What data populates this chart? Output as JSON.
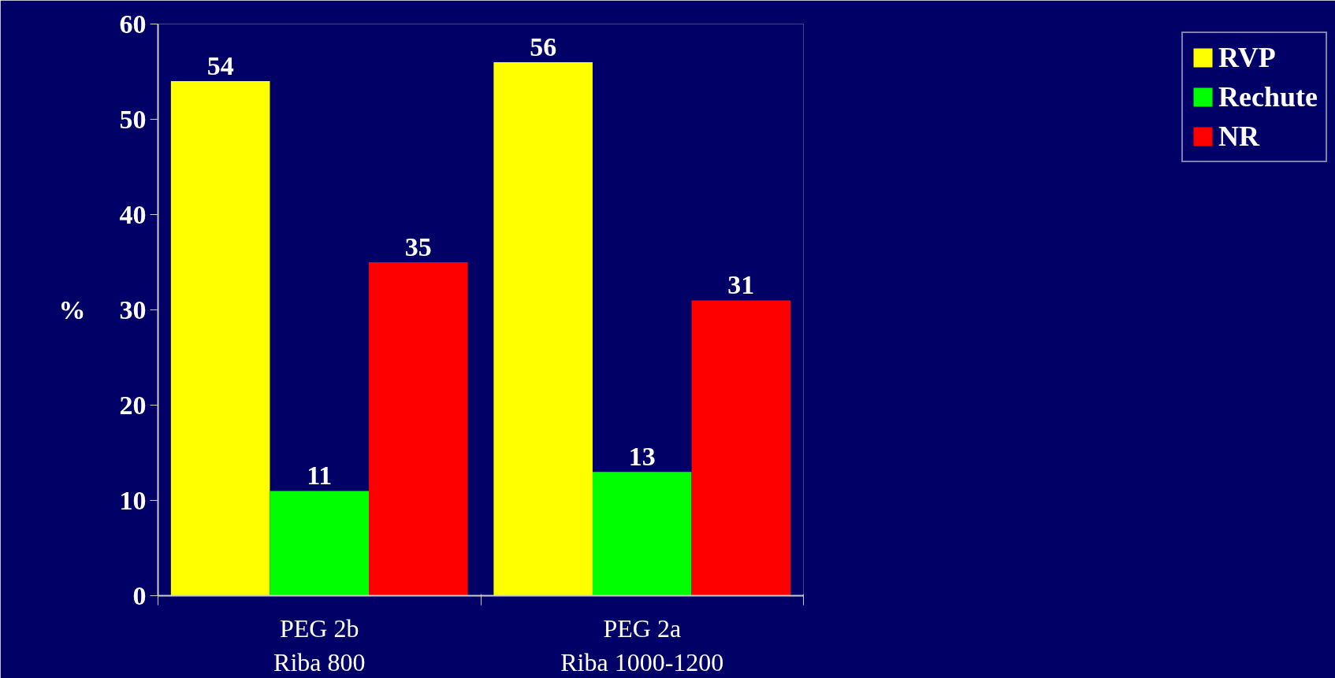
{
  "chart_data": {
    "type": "bar",
    "ylabel": "%",
    "categories": [
      "PEG 2b\nRiba 800",
      "PEG 2a\nRiba 1000-1200"
    ],
    "series": [
      {
        "name": "RVP",
        "color": "#ffff00",
        "values": [
          54,
          56
        ]
      },
      {
        "name": "Rechute",
        "color": "#00ff00",
        "values": [
          11,
          13
        ]
      },
      {
        "name": "NR",
        "color": "#ff0000",
        "values": [
          35,
          31
        ]
      }
    ],
    "ylim": [
      0,
      60
    ],
    "yticks": [
      0,
      10,
      20,
      30,
      40,
      50,
      60
    ],
    "grid": false,
    "legend": "right",
    "data_labels": true
  }
}
